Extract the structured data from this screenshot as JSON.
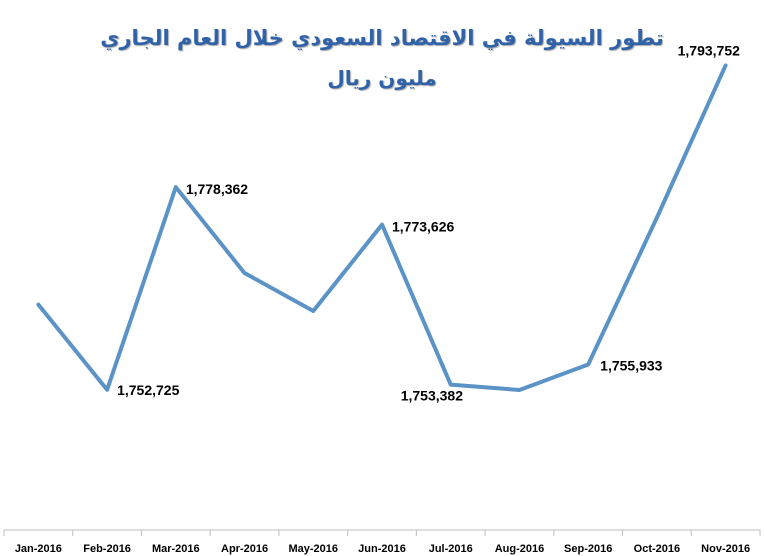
{
  "chart_data": {
    "type": "line",
    "title": "تطور السيولة في الاقتصاد السعودي خلال العام الجاري",
    "subtitle": "مليون ريال",
    "categories": [
      "Jan-2016",
      "Feb-2016",
      "Mar-2016",
      "Apr-2016",
      "May-2016",
      "Jun-2016",
      "Jul-2016",
      "Aug-2016",
      "Sep-2016",
      "Oct-2016",
      "Nov-2016"
    ],
    "series": [
      {
        "values": [
          1763500,
          1752725,
          1778362,
          1767500,
          1762700,
          1773626,
          1753382,
          1752700,
          1755933,
          1774500,
          1793752
        ]
      }
    ],
    "data_labels": [
      {
        "index": 1,
        "text": "1,752,725"
      },
      {
        "index": 2,
        "text": "1,778,362"
      },
      {
        "index": 5,
        "text": "1,773,626"
      },
      {
        "index": 6,
        "text": "1,753,382"
      },
      {
        "index": 8,
        "text": "1,755,933"
      },
      {
        "index": 10,
        "text": "1,793,752"
      }
    ],
    "ylim": [
      1735000,
      1800000
    ],
    "grid": false,
    "legend": "none",
    "line_color": "#5b93c7"
  }
}
